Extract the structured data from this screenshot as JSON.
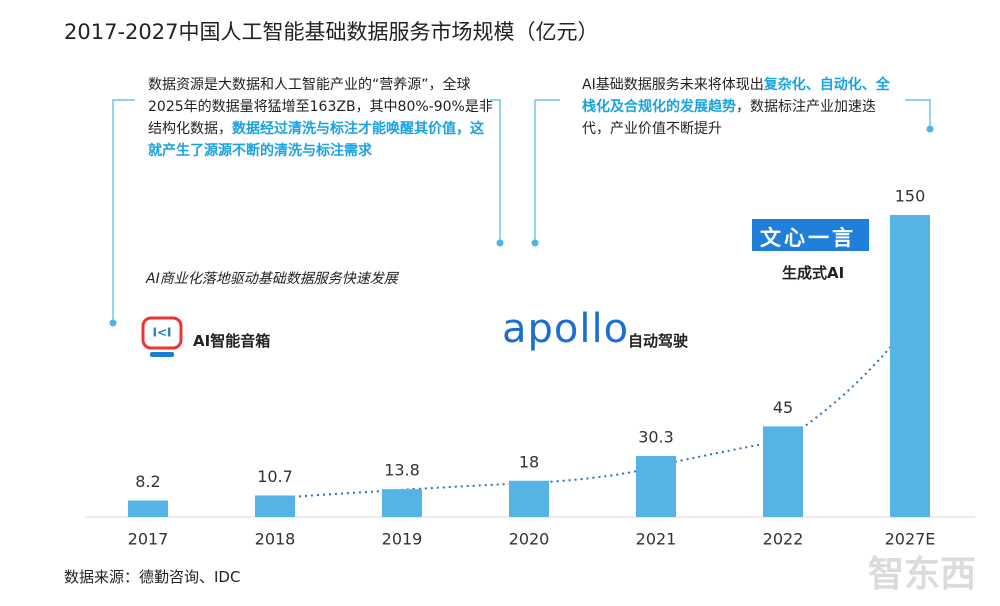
{
  "chart_data": {
    "type": "bar",
    "title": "2017-2027中国人工智能基础数据服务市场规模（亿元）",
    "categories": [
      "2017",
      "2018",
      "2019",
      "2020",
      "2021",
      "2022",
      "2027E"
    ],
    "values": [
      8.2,
      10.7,
      13.8,
      18,
      30.3,
      45,
      150
    ],
    "color": "#55b3e6",
    "annotations": [
      {
        "segments": [
          {
            "text": "数据资源是大数据和人工智能产业的“营养源”，全球2025年的数据量将猛增至163ZB，其中80%-90%是非结构化数据，",
            "highlight": false
          },
          {
            "text": "数据经过清洗与标注才能唤醒其价值，这就产生了源源不断的清洗与标注需求",
            "highlight": true
          }
        ]
      },
      {
        "segments": [
          {
            "text": "AI基础数据服务未来将体现出",
            "highlight": false
          },
          {
            "text": "复杂化、自动化、全栈化及合规化的发展趋势",
            "highlight": true
          },
          {
            "text": "，数据标注产业加速迭代，产业价值不断提升",
            "highlight": false
          }
        ]
      }
    ],
    "subtitle": "AI商业化落地驱动基础数据服务快速发展",
    "labels": {
      "speaker": "AI智能音箱",
      "apollo_logo": "apollo",
      "apollo": "自动驾驶",
      "ernie_logo": "文心一言",
      "ernie": "生成式AI"
    },
    "source": "数据来源：德勤咨询、IDC",
    "watermark": "智东西"
  }
}
